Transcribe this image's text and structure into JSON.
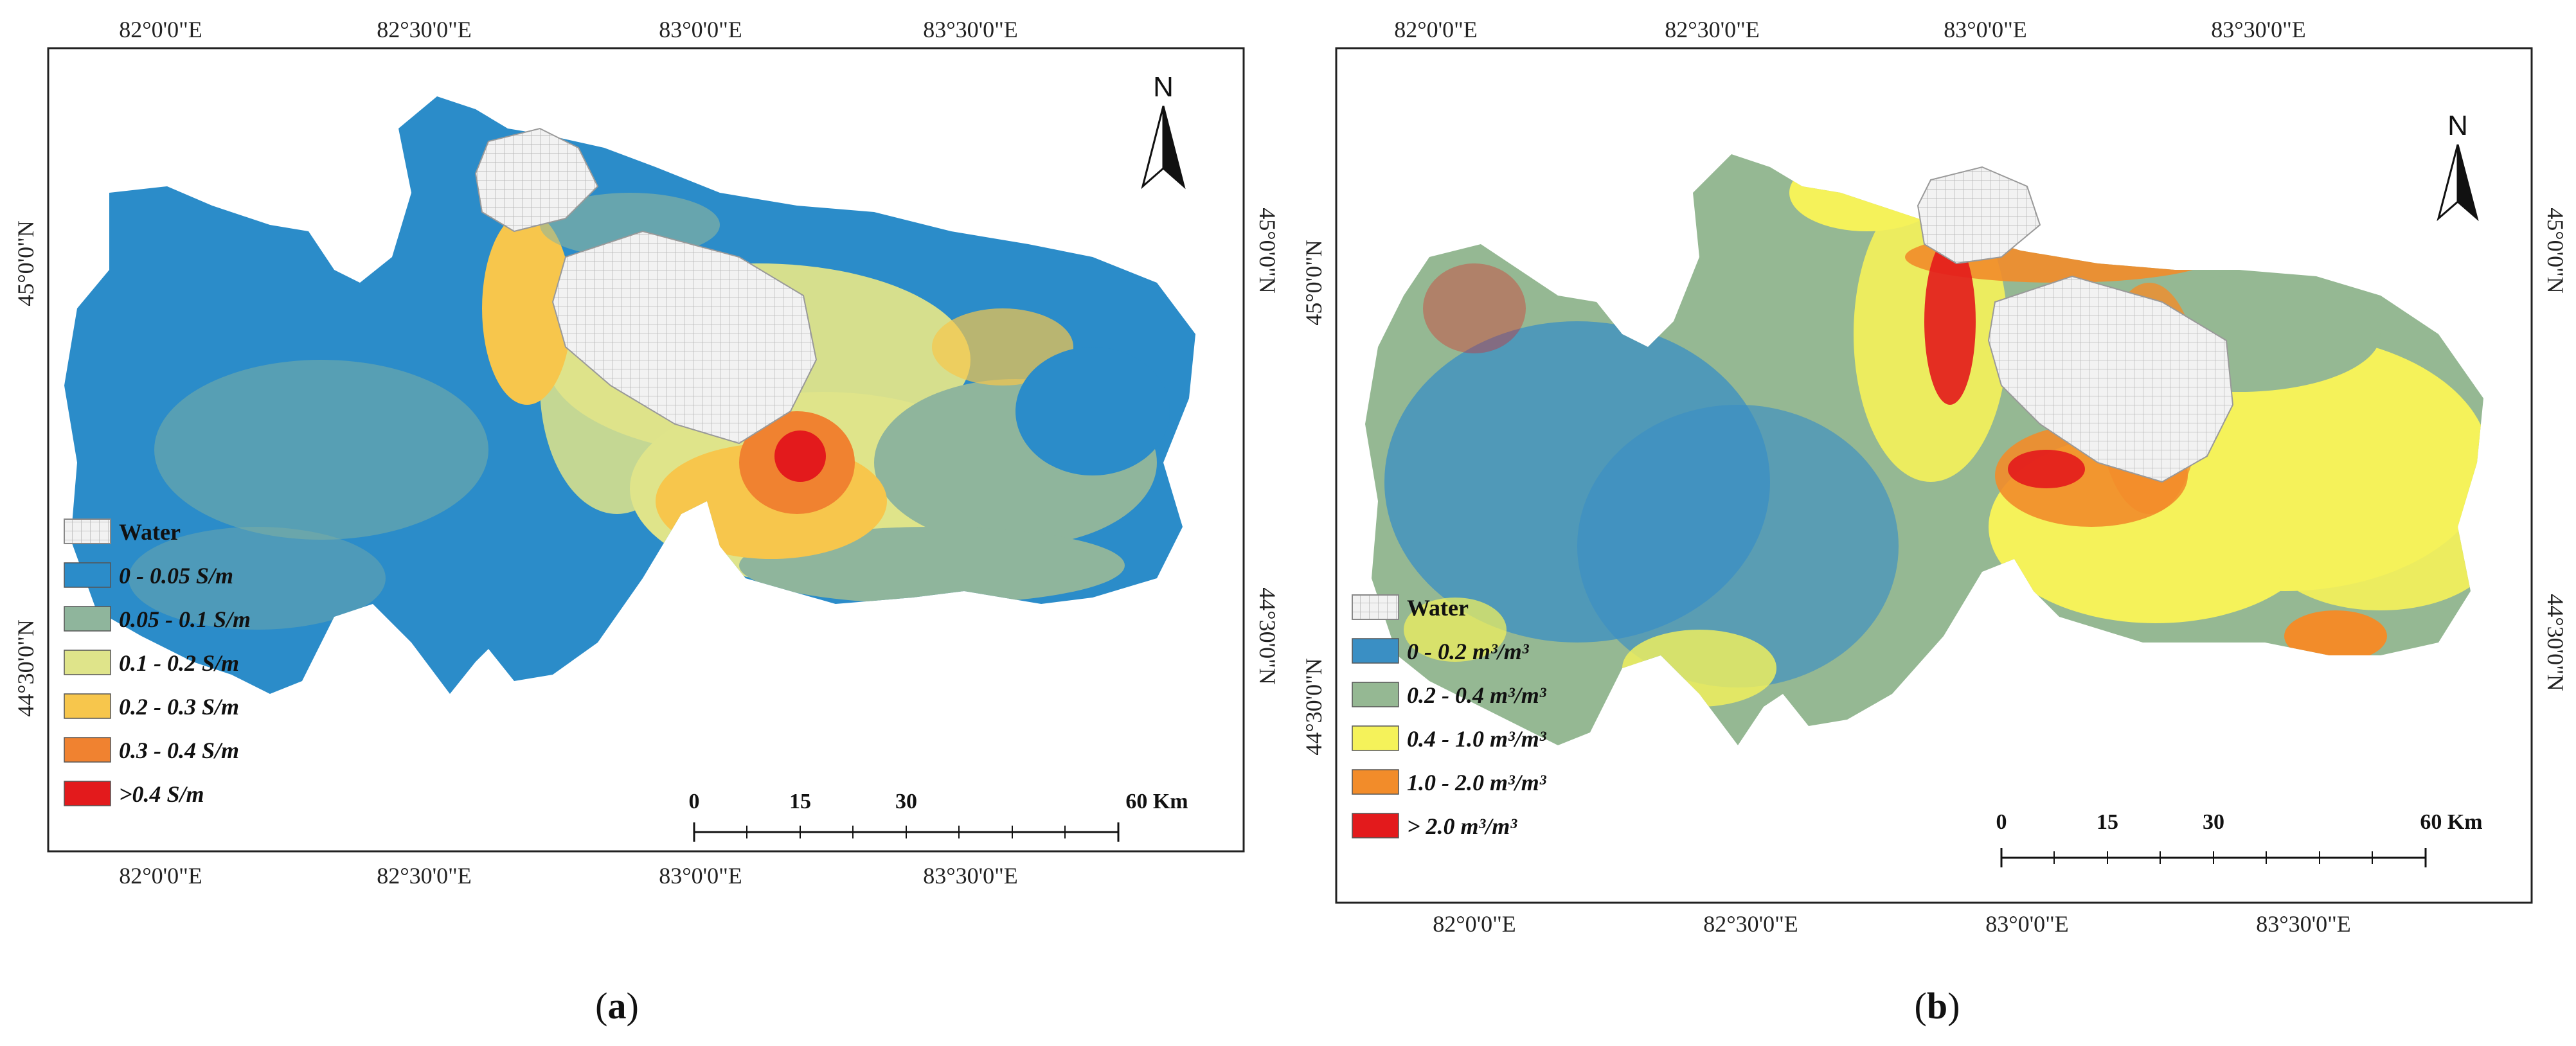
{
  "panels": [
    {
      "id": "a",
      "caption_letter": "a",
      "lon_ticks": [
        "82°0'0\"E",
        "82°30'0\"E",
        "83°0'0\"E",
        "83°30'0\"E"
      ],
      "lat_ticks": [
        "45°0'0\"N",
        "44°30'0\"N"
      ],
      "north_label": "N",
      "legend": [
        {
          "label": "Water",
          "color": "#e8e8e8",
          "pattern": "grid"
        },
        {
          "label": "0 - 0.05 S/m",
          "color": "#2b8cc9"
        },
        {
          "label": "0.05 - 0.1 S/m",
          "color": "#8fb59c"
        },
        {
          "label": "0.1 - 0.2 S/m",
          "color": "#dfe48a"
        },
        {
          "label": "0.2 - 0.3 S/m",
          "color": "#f7c64c"
        },
        {
          "label": "0.3 - 0.4 S/m",
          "color": "#f08230"
        },
        {
          "label": ">0.4 S/m",
          "color": "#e31a1c"
        }
      ],
      "scale_labels": [
        "0",
        "15",
        "30",
        "60 Km"
      ]
    },
    {
      "id": "b",
      "caption_letter": "b",
      "lon_ticks": [
        "82°0'0\"E",
        "82°30'0\"E",
        "83°0'0\"E",
        "83°30'0\"E"
      ],
      "lat_ticks": [
        "45°0'0\"N",
        "44°30'0\"N"
      ],
      "north_label": "N",
      "legend": [
        {
          "label": "Water",
          "color": "#e8e8e8",
          "pattern": "grid"
        },
        {
          "label": "0 - 0.2 m³/m³",
          "color": "#3a8fc4"
        },
        {
          "label": "0.2 - 0.4 m³/m³",
          "color": "#95b893"
        },
        {
          "label": "0.4 - 1.0 m³/m³",
          "color": "#f5f25a"
        },
        {
          "label": "1.0 - 2.0 m³/m³",
          "color": "#f28c2a"
        },
        {
          "label": "> 2.0 m³/m³",
          "color": "#e31a1c"
        }
      ],
      "scale_labels": [
        "0",
        "15",
        "30",
        "60 Km"
      ]
    }
  ]
}
